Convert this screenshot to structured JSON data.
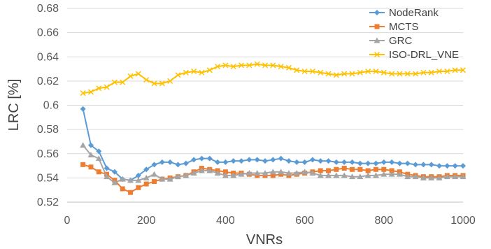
{
  "chart_data": {
    "type": "line",
    "xlabel": "VNRs",
    "ylabel": "LRC [%]",
    "xlim": [
      0,
      1000
    ],
    "ylim": [
      0.52,
      0.68
    ],
    "x_ticks": [
      "0",
      "200",
      "400",
      "600",
      "800",
      "1000"
    ],
    "y_ticks": [
      "0.52",
      "0.54",
      "0.56",
      "0.58",
      "0.6",
      "0.62",
      "0.64",
      "0.66",
      "0.68"
    ],
    "grid": "horizontal",
    "legend_position": "top-right",
    "x": [
      40,
      60,
      80,
      100,
      120,
      140,
      160,
      180,
      200,
      220,
      240,
      260,
      280,
      300,
      320,
      340,
      360,
      380,
      400,
      420,
      440,
      460,
      480,
      500,
      520,
      540,
      560,
      580,
      600,
      620,
      640,
      660,
      680,
      700,
      720,
      740,
      760,
      780,
      800,
      820,
      840,
      860,
      880,
      900,
      920,
      940,
      960,
      980,
      1000
    ],
    "series": [
      {
        "name": "NodeRank",
        "color": "#5b9bd5",
        "marker": "diamond",
        "values": [
          0.597,
          0.567,
          0.562,
          0.548,
          0.545,
          0.539,
          0.538,
          0.542,
          0.547,
          0.551,
          0.553,
          0.553,
          0.551,
          0.552,
          0.555,
          0.556,
          0.556,
          0.553,
          0.553,
          0.554,
          0.554,
          0.555,
          0.555,
          0.554,
          0.555,
          0.556,
          0.554,
          0.553,
          0.553,
          0.555,
          0.554,
          0.554,
          0.553,
          0.553,
          0.553,
          0.552,
          0.552,
          0.552,
          0.553,
          0.553,
          0.552,
          0.552,
          0.551,
          0.551,
          0.551,
          0.55,
          0.55,
          0.55,
          0.55
        ]
      },
      {
        "name": "MCTS",
        "color": "#ed7d31",
        "marker": "square",
        "values": [
          0.551,
          0.549,
          0.545,
          0.543,
          0.538,
          0.531,
          0.528,
          0.532,
          0.535,
          0.537,
          0.539,
          0.54,
          0.541,
          0.542,
          0.545,
          0.548,
          0.547,
          0.546,
          0.545,
          0.544,
          0.544,
          0.543,
          0.542,
          0.542,
          0.542,
          0.543,
          0.542,
          0.543,
          0.544,
          0.545,
          0.546,
          0.546,
          0.547,
          0.548,
          0.547,
          0.547,
          0.546,
          0.547,
          0.547,
          0.546,
          0.545,
          0.543,
          0.542,
          0.541,
          0.541,
          0.541,
          0.542,
          0.542,
          0.542
        ]
      },
      {
        "name": "GRC",
        "color": "#a5a5a5",
        "marker": "triangle",
        "values": [
          0.567,
          0.559,
          0.556,
          0.541,
          0.536,
          0.539,
          0.538,
          0.538,
          0.54,
          0.543,
          0.539,
          0.539,
          0.541,
          0.542,
          0.544,
          0.546,
          0.546,
          0.544,
          0.542,
          0.542,
          0.543,
          0.544,
          0.544,
          0.544,
          0.545,
          0.545,
          0.544,
          0.544,
          0.545,
          0.544,
          0.542,
          0.542,
          0.542,
          0.542,
          0.541,
          0.541,
          0.542,
          0.542,
          0.543,
          0.543,
          0.543,
          0.541,
          0.541,
          0.54,
          0.54,
          0.54,
          0.541,
          0.541,
          0.541
        ]
      },
      {
        "name": "ISO-DRL_VNE",
        "color": "#ffc000",
        "marker": "x",
        "values": [
          0.61,
          0.611,
          0.614,
          0.615,
          0.619,
          0.619,
          0.624,
          0.626,
          0.621,
          0.618,
          0.618,
          0.62,
          0.625,
          0.627,
          0.628,
          0.627,
          0.629,
          0.632,
          0.633,
          0.632,
          0.633,
          0.633,
          0.634,
          0.633,
          0.633,
          0.632,
          0.631,
          0.629,
          0.628,
          0.628,
          0.627,
          0.626,
          0.625,
          0.626,
          0.626,
          0.627,
          0.628,
          0.628,
          0.627,
          0.626,
          0.626,
          0.626,
          0.626,
          0.627,
          0.627,
          0.628,
          0.628,
          0.629,
          0.629
        ]
      }
    ]
  }
}
